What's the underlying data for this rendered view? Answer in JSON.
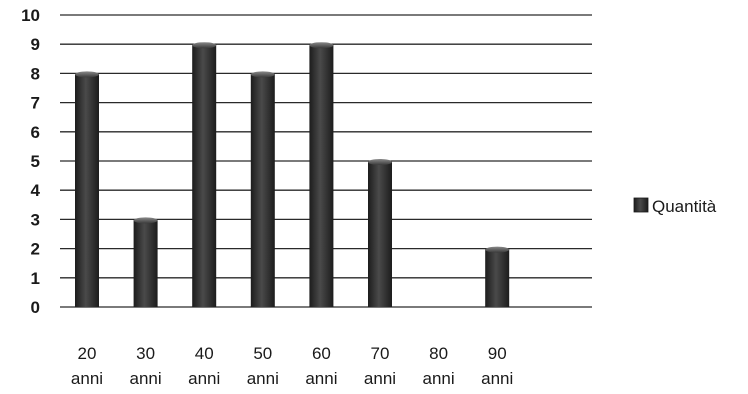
{
  "chart_data": {
    "type": "bar",
    "categories": [
      "20 anni",
      "30 anni",
      "40 anni",
      "50 anni",
      "60 anni",
      "70 anni",
      "80 anni",
      "90 anni"
    ],
    "series": [
      {
        "name": "Quantità",
        "values": [
          8,
          3,
          9,
          8,
          9,
          5,
          0,
          2
        ]
      }
    ],
    "title": "",
    "xlabel": "",
    "ylabel": "",
    "ylim": [
      0,
      10
    ],
    "yticks": [
      "0",
      "1",
      "2",
      "3",
      "4",
      "5",
      "6",
      "7",
      "8",
      "9",
      "10"
    ],
    "grid": true,
    "legend_position": "right",
    "colors": {
      "bar": "#3a3a3a",
      "bar_highlight": "#5c5c5c",
      "grid": "#2a2a2a"
    }
  }
}
